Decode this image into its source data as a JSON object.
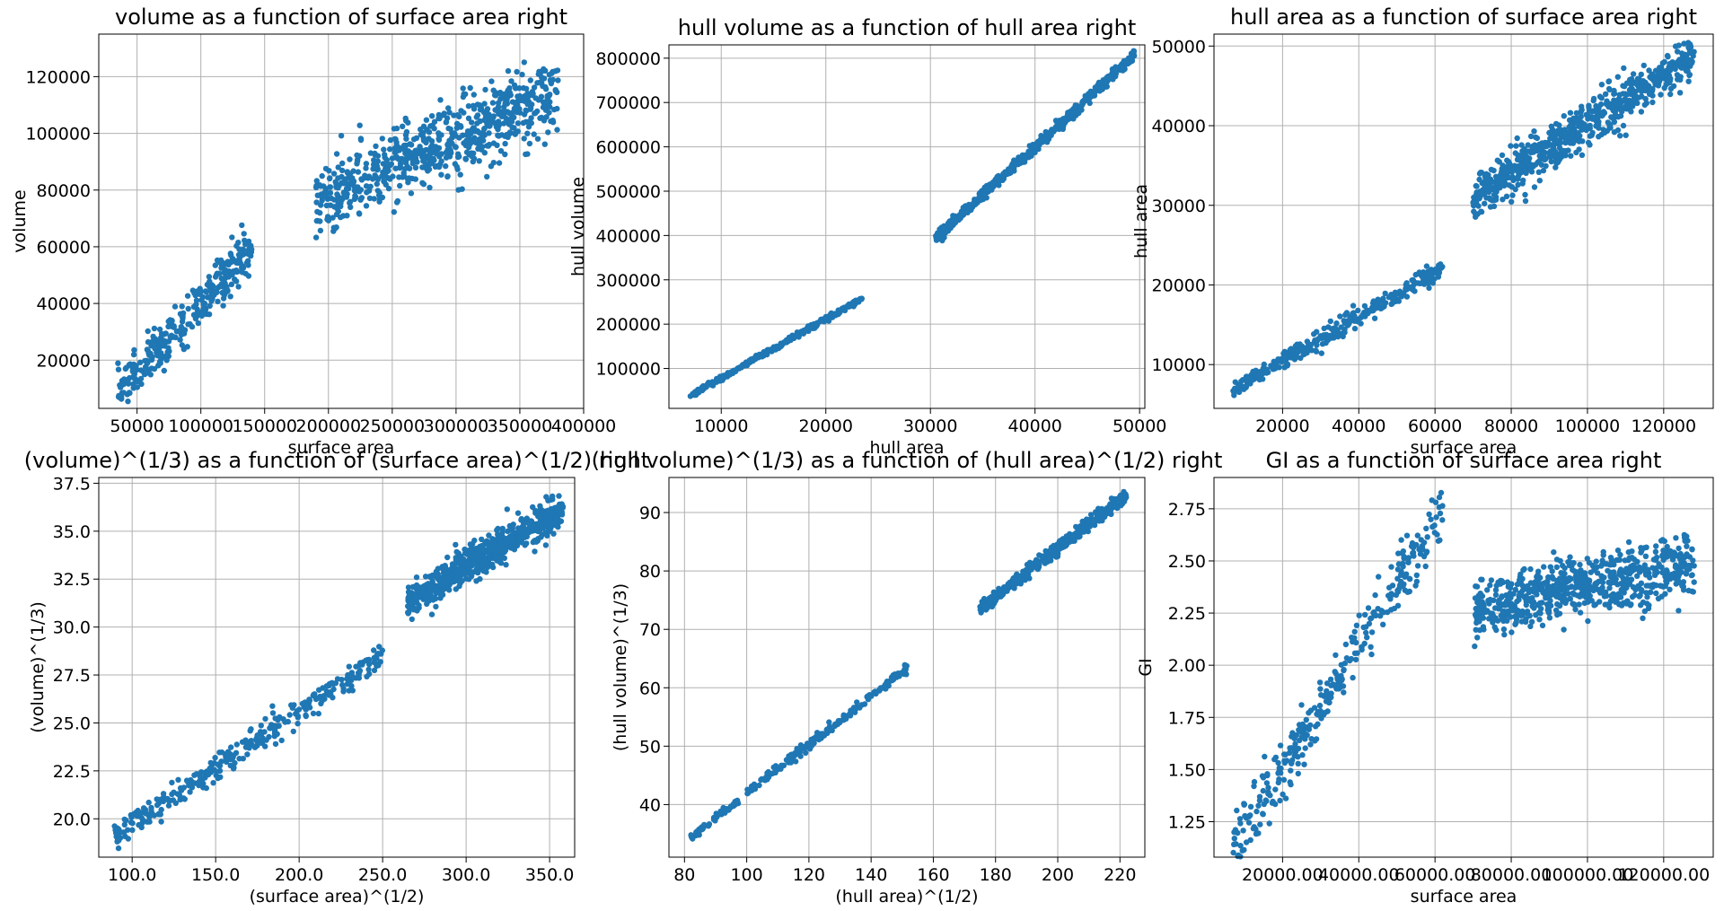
{
  "accent_color": "#1f77b4",
  "chart_data": [
    {
      "type": "scatter",
      "title": "volume as a function of surface area right",
      "xlabel": "surface area",
      "ylabel": "volume",
      "xlim": [
        20000,
        400000
      ],
      "ylim": [
        3000,
        135000
      ],
      "xticks": [
        50000,
        100000,
        150000,
        200000,
        250000,
        300000,
        350000,
        400000
      ],
      "yticks": [
        20000,
        40000,
        60000,
        80000,
        100000,
        120000
      ],
      "grid": true,
      "clusters": [
        {
          "x_range": [
            35000,
            140000
          ],
          "y_center": [
            8000,
            60000
          ],
          "spread": 4000,
          "count": 320
        },
        {
          "x_range": [
            190000,
            380000
          ],
          "y_center": [
            75000,
            115000
          ],
          "spread": 6500,
          "count": 700
        }
      ]
    },
    {
      "type": "scatter",
      "title": "hull volume as a function of hull area right",
      "xlabel": "hull area",
      "ylabel": "hull volume",
      "xlim": [
        5000,
        50500
      ],
      "ylim": [
        10000,
        830000
      ],
      "xticks": [
        10000,
        20000,
        30000,
        40000,
        50000
      ],
      "yticks": [
        100000,
        200000,
        300000,
        400000,
        500000,
        600000,
        700000,
        800000
      ],
      "grid": true,
      "clusters": [
        {
          "x_range": [
            7000,
            23500
          ],
          "y_center": [
            38000,
            258000
          ],
          "spread": 3000,
          "count": 260
        },
        {
          "x_range": [
            30500,
            49500
          ],
          "y_center": [
            395000,
            805000
          ],
          "spread": 6000,
          "count": 500
        }
      ]
    },
    {
      "type": "scatter",
      "title": "hull area as a function of surface area right",
      "xlabel": "surface area",
      "ylabel": "hull area",
      "xlim": [
        2000,
        133000
      ],
      "ylim": [
        4500,
        51500
      ],
      "xticks": [
        20000,
        40000,
        60000,
        80000,
        100000,
        120000
      ],
      "yticks": [
        10000,
        20000,
        30000,
        40000,
        50000
      ],
      "grid": true,
      "clusters": [
        {
          "x_range": [
            7000,
            62000
          ],
          "y_center": [
            6800,
            22000
          ],
          "spread": 600,
          "count": 320
        },
        {
          "x_range": [
            70000,
            128000
          ],
          "y_center": [
            31000,
            49000
          ],
          "spread": 1400,
          "count": 700
        }
      ]
    },
    {
      "type": "scatter",
      "title": "(volume)^(1/3) as a function of (surface area)^(1/2) right",
      "xlabel": "(surface area)^(1/2)",
      "ylabel": "(volume)^(1/3)",
      "xlim": [
        80,
        365
      ],
      "ylim": [
        18,
        37.8
      ],
      "xticks": [
        100,
        150,
        200,
        250,
        300,
        350
      ],
      "yticks": [
        20.0,
        22.5,
        25.0,
        27.5,
        30.0,
        32.5,
        35.0,
        37.5
      ],
      "tick_decimals": 1,
      "grid": true,
      "clusters": [
        {
          "x_range": [
            88,
            250
          ],
          "y_center": [
            19.0,
            28.5
          ],
          "spread": 0.35,
          "count": 320
        },
        {
          "x_range": [
            265,
            358
          ],
          "y_center": [
            31.3,
            36.2
          ],
          "spread": 0.45,
          "count": 700
        }
      ]
    },
    {
      "type": "scatter",
      "title": "(hull volume)^(1/3) as a function of (hull area)^(1/2) right",
      "xlabel": "(hull area)^(1/2)",
      "ylabel": "(hull volume)^(1/3)",
      "xlim": [
        75,
        228
      ],
      "ylim": [
        31,
        96
      ],
      "xticks": [
        80,
        100,
        120,
        140,
        160,
        180,
        200,
        220
      ],
      "yticks": [
        40,
        50,
        60,
        70,
        80,
        90
      ],
      "grid": true,
      "clusters": [
        {
          "x_range": [
            82,
            152
          ],
          "y_center": [
            34.5,
            63.5
          ],
          "spread": 0.4,
          "count": 260
        },
        {
          "x_range": [
            175,
            222
          ],
          "y_center": [
            73.5,
            93
          ],
          "spread": 0.5,
          "count": 500
        }
      ]
    },
    {
      "type": "scatter",
      "title": "GI as a function of surface area right",
      "xlabel": "surface area",
      "ylabel": "GI",
      "xlim": [
        2000,
        133000
      ],
      "ylim": [
        1.08,
        2.9
      ],
      "xticks": [
        20000,
        40000,
        60000,
        80000,
        100000,
        120000
      ],
      "yticks": [
        1.25,
        1.5,
        1.75,
        2.0,
        2.25,
        2.5,
        2.75
      ],
      "tick_decimals": 2,
      "grid": true,
      "clusters": [
        {
          "x_range": [
            7000,
            62000
          ],
          "y_center": [
            1.12,
            2.75
          ],
          "spread": 0.07,
          "count": 320
        },
        {
          "x_range": [
            70000,
            128000
          ],
          "y_center": [
            2.27,
            2.48
          ],
          "spread": 0.07,
          "count": 700
        }
      ]
    }
  ]
}
